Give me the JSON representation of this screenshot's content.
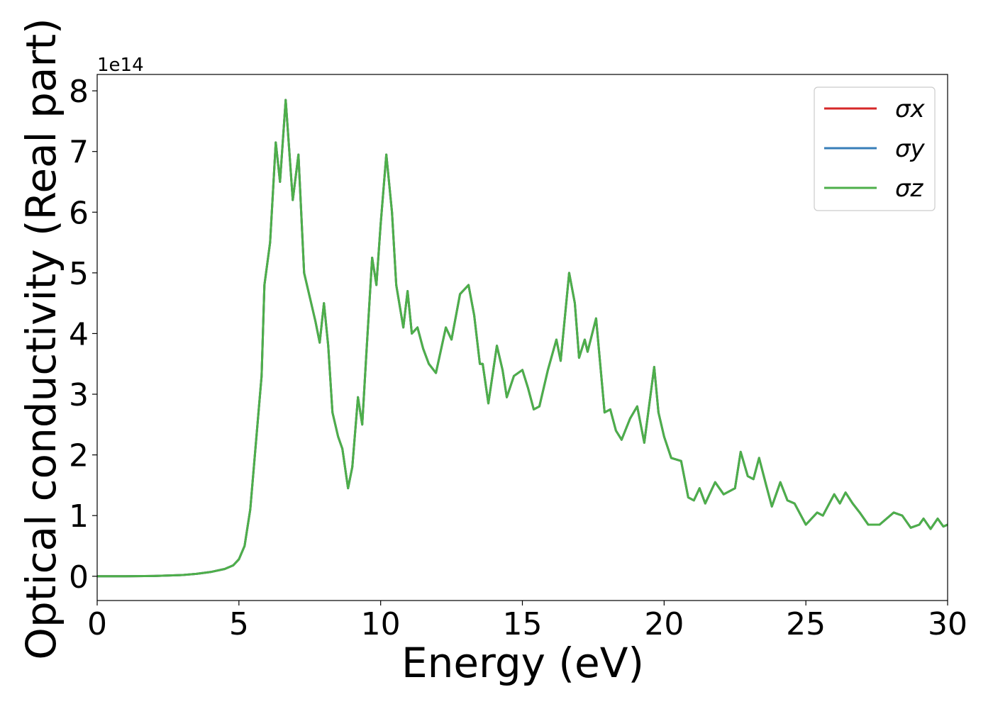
{
  "chart_data": {
    "type": "line",
    "xlabel": "Energy (eV)",
    "ylabel": "Optical conductivity (Real part)",
    "offset_label": "1e14",
    "xlim": [
      0,
      30
    ],
    "xticks": [
      0,
      5,
      10,
      15,
      20,
      25,
      30
    ],
    "ylim": [
      -0.4,
      8.27
    ],
    "yticks": [
      0,
      1,
      2,
      3,
      4,
      5,
      6,
      7,
      8
    ],
    "grid": false,
    "legend": "upper right",
    "x": [
      0,
      1,
      2,
      3,
      3.5,
      4,
      4.5,
      4.8,
      5,
      5.2,
      5.4,
      5.6,
      5.8,
      5.9,
      6.1,
      6.3,
      6.45,
      6.65,
      6.9,
      7.1,
      7.3,
      7.5,
      7.7,
      7.85,
      8,
      8.15,
      8.3,
      8.5,
      8.65,
      8.85,
      9,
      9.2,
      9.35,
      9.5,
      9.7,
      9.85,
      10,
      10.2,
      10.4,
      10.55,
      10.8,
      10.95,
      11.1,
      11.3,
      11.5,
      11.7,
      11.95,
      12.3,
      12.5,
      12.8,
      13.1,
      13.3,
      13.5,
      13.6,
      13.8,
      14.1,
      14.3,
      14.45,
      14.7,
      15,
      15.2,
      15.4,
      15.6,
      15.9,
      16.2,
      16.35,
      16.65,
      16.85,
      17,
      17.2,
      17.3,
      17.6,
      17.9,
      18.1,
      18.3,
      18.5,
      18.8,
      19.05,
      19.3,
      19.65,
      19.8,
      20,
      20.25,
      20.6,
      20.85,
      21.05,
      21.25,
      21.45,
      21.8,
      22.1,
      22.5,
      22.7,
      22.95,
      23.15,
      23.35,
      23.6,
      23.8,
      24.1,
      24.35,
      24.6,
      25,
      25.4,
      25.6,
      26,
      26.2,
      26.4,
      26.65,
      26.9,
      27.2,
      27.6,
      28.1,
      28.4,
      28.7,
      29,
      29.15,
      29.4,
      29.65,
      29.85,
      30
    ],
    "series": [
      {
        "name": "σx",
        "color": "#d62728",
        "values": [
          0,
          0,
          0.005,
          0.02,
          0.04,
          0.07,
          0.12,
          0.18,
          0.28,
          0.5,
          1.1,
          2.2,
          3.3,
          4.8,
          5.5,
          7.15,
          6.5,
          7.85,
          6.2,
          6.95,
          5.0,
          4.6,
          4.2,
          3.85,
          4.5,
          3.8,
          2.7,
          2.3,
          2.1,
          1.45,
          1.8,
          2.95,
          2.5,
          3.7,
          5.25,
          4.8,
          5.8,
          6.95,
          6.0,
          4.8,
          4.1,
          4.7,
          4.0,
          4.1,
          3.75,
          3.5,
          3.35,
          4.1,
          3.9,
          4.65,
          4.8,
          4.3,
          3.5,
          3.5,
          2.85,
          3.8,
          3.4,
          2.95,
          3.3,
          3.4,
          3.1,
          2.75,
          2.8,
          3.4,
          3.9,
          3.55,
          5.0,
          4.5,
          3.6,
          3.9,
          3.7,
          4.25,
          2.7,
          2.75,
          2.4,
          2.25,
          2.6,
          2.8,
          2.2,
          3.45,
          2.7,
          2.3,
          1.95,
          1.9,
          1.3,
          1.25,
          1.45,
          1.2,
          1.55,
          1.35,
          1.45,
          2.05,
          1.65,
          1.6,
          1.95,
          1.5,
          1.15,
          1.55,
          1.25,
          1.2,
          0.85,
          1.05,
          1.0,
          1.35,
          1.2,
          1.38,
          1.2,
          1.05,
          0.85,
          0.85,
          1.05,
          1.0,
          0.8,
          0.85,
          0.95,
          0.78,
          0.95,
          0.82,
          0.85
        ]
      },
      {
        "name": "σy",
        "color": "#377eb8",
        "values": [
          0,
          0,
          0.005,
          0.02,
          0.04,
          0.07,
          0.12,
          0.18,
          0.28,
          0.5,
          1.1,
          2.2,
          3.3,
          4.8,
          5.5,
          7.15,
          6.5,
          7.85,
          6.2,
          6.95,
          5.0,
          4.6,
          4.2,
          3.85,
          4.5,
          3.8,
          2.7,
          2.3,
          2.1,
          1.45,
          1.8,
          2.95,
          2.5,
          3.7,
          5.25,
          4.8,
          5.8,
          6.95,
          6.0,
          4.8,
          4.1,
          4.7,
          4.0,
          4.1,
          3.75,
          3.5,
          3.35,
          4.1,
          3.9,
          4.65,
          4.8,
          4.3,
          3.5,
          3.5,
          2.85,
          3.8,
          3.4,
          2.95,
          3.3,
          3.4,
          3.1,
          2.75,
          2.8,
          3.4,
          3.9,
          3.55,
          5.0,
          4.5,
          3.6,
          3.9,
          3.7,
          4.25,
          2.7,
          2.75,
          2.4,
          2.25,
          2.6,
          2.8,
          2.2,
          3.45,
          2.7,
          2.3,
          1.95,
          1.9,
          1.3,
          1.25,
          1.45,
          1.2,
          1.55,
          1.35,
          1.45,
          2.05,
          1.65,
          1.6,
          1.95,
          1.5,
          1.15,
          1.55,
          1.25,
          1.2,
          0.85,
          1.05,
          1.0,
          1.35,
          1.2,
          1.38,
          1.2,
          1.05,
          0.85,
          0.85,
          1.05,
          1.0,
          0.8,
          0.85,
          0.95,
          0.78,
          0.95,
          0.82,
          0.85
        ]
      },
      {
        "name": "σz",
        "color": "#4daf4a",
        "values": [
          0,
          0,
          0.005,
          0.02,
          0.04,
          0.07,
          0.12,
          0.18,
          0.28,
          0.5,
          1.1,
          2.2,
          3.3,
          4.8,
          5.5,
          7.15,
          6.5,
          7.85,
          6.2,
          6.95,
          5.0,
          4.6,
          4.2,
          3.85,
          4.5,
          3.8,
          2.7,
          2.3,
          2.1,
          1.45,
          1.8,
          2.95,
          2.5,
          3.7,
          5.25,
          4.8,
          5.8,
          6.95,
          6.0,
          4.8,
          4.1,
          4.7,
          4.0,
          4.1,
          3.75,
          3.5,
          3.35,
          4.1,
          3.9,
          4.65,
          4.8,
          4.3,
          3.5,
          3.5,
          2.85,
          3.8,
          3.4,
          2.95,
          3.3,
          3.4,
          3.1,
          2.75,
          2.8,
          3.4,
          3.9,
          3.55,
          5.0,
          4.5,
          3.6,
          3.9,
          3.7,
          4.25,
          2.7,
          2.75,
          2.4,
          2.25,
          2.6,
          2.8,
          2.2,
          3.45,
          2.7,
          2.3,
          1.95,
          1.9,
          1.3,
          1.25,
          1.45,
          1.2,
          1.55,
          1.35,
          1.45,
          2.05,
          1.65,
          1.6,
          1.95,
          1.5,
          1.15,
          1.55,
          1.25,
          1.2,
          0.85,
          1.05,
          1.0,
          1.35,
          1.2,
          1.38,
          1.2,
          1.05,
          0.85,
          0.85,
          1.05,
          1.0,
          0.8,
          0.85,
          0.95,
          0.78,
          0.95,
          0.82,
          0.85
        ]
      }
    ]
  }
}
